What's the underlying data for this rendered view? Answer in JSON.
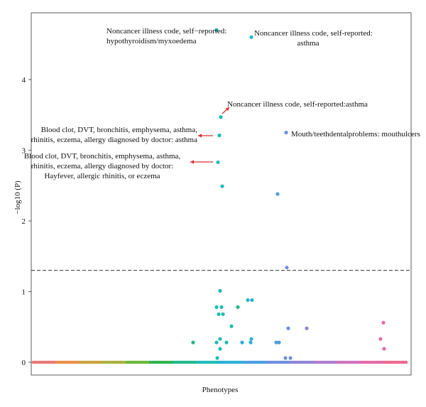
{
  "chart_data": {
    "type": "scatter",
    "title": "",
    "xlabel": "Phenotypes",
    "ylabel": "−log10 (P)",
    "ylim": [
      0,
      5
    ],
    "yticks": [
      0,
      1,
      2,
      3,
      4
    ],
    "threshold": 1.3,
    "grid": false,
    "legend": "none",
    "baseline_colors": [
      "#e87878",
      "#e8904a",
      "#c9a23a",
      "#a8b23a",
      "#6cb83a",
      "#2fb34f",
      "#22b88a",
      "#1fbcb4",
      "#2bb0d6",
      "#4a9ee0",
      "#6d8fe0",
      "#8f84d8",
      "#b07ccc",
      "#cf72bc",
      "#e46aa6",
      "#ee6a8e"
    ],
    "points": [
      {
        "x": 305,
        "y": 4.7,
        "color": "#1fbcb4"
      },
      {
        "x": 354,
        "y": 4.6,
        "color": "#2bb0d6"
      },
      {
        "x": 311,
        "y": 3.47,
        "color": "#1fbcb4"
      },
      {
        "x": 309,
        "y": 3.21,
        "color": "#1fbcb4"
      },
      {
        "x": 403,
        "y": 3.25,
        "color": "#6d8fe0"
      },
      {
        "x": 307,
        "y": 2.83,
        "color": "#1fbcb4"
      },
      {
        "x": 313,
        "y": 2.49,
        "color": "#1fbcb4"
      },
      {
        "x": 391,
        "y": 2.38,
        "color": "#4a9ee0"
      },
      {
        "x": 404,
        "y": 1.34,
        "color": "#6d8fe0"
      },
      {
        "x": 310,
        "y": 1.01,
        "color": "#1fbcb4"
      },
      {
        "x": 305,
        "y": 0.78,
        "color": "#1fbcb4"
      },
      {
        "x": 312,
        "y": 0.78,
        "color": "#1fbcb4"
      },
      {
        "x": 308,
        "y": 0.68,
        "color": "#1fbcb4"
      },
      {
        "x": 314,
        "y": 0.68,
        "color": "#1fbcb4"
      },
      {
        "x": 349,
        "y": 0.88,
        "color": "#2bb0d6"
      },
      {
        "x": 355,
        "y": 0.88,
        "color": "#2bb0d6"
      },
      {
        "x": 335,
        "y": 0.78,
        "color": "#22b88a"
      },
      {
        "x": 326,
        "y": 0.51,
        "color": "#1fbcb4"
      },
      {
        "x": 406,
        "y": 0.48,
        "color": "#6d8fe0"
      },
      {
        "x": 432,
        "y": 0.48,
        "color": "#8f84d8"
      },
      {
        "x": 540,
        "y": 0.56,
        "color": "#e46aa6"
      },
      {
        "x": 310,
        "y": 0.33,
        "color": "#1fbcb4"
      },
      {
        "x": 354,
        "y": 0.33,
        "color": "#2bb0d6"
      },
      {
        "x": 536,
        "y": 0.33,
        "color": "#e46aa6"
      },
      {
        "x": 272,
        "y": 0.28,
        "color": "#22b88a"
      },
      {
        "x": 305,
        "y": 0.28,
        "color": "#1fbcb4"
      },
      {
        "x": 319,
        "y": 0.28,
        "color": "#1fbcb4"
      },
      {
        "x": 341,
        "y": 0.28,
        "color": "#2bb0d6"
      },
      {
        "x": 353,
        "y": 0.28,
        "color": "#2bb0d6"
      },
      {
        "x": 389,
        "y": 0.28,
        "color": "#4a9ee0"
      },
      {
        "x": 393,
        "y": 0.28,
        "color": "#4a9ee0"
      },
      {
        "x": 310,
        "y": 0.19,
        "color": "#1fbcb4"
      },
      {
        "x": 541,
        "y": 0.19,
        "color": "#e46aa6"
      },
      {
        "x": 306,
        "y": 0.06,
        "color": "#1fbcb4"
      },
      {
        "x": 402,
        "y": 0.06,
        "color": "#6d8fe0"
      },
      {
        "x": 409,
        "y": 0.06,
        "color": "#6d8fe0"
      }
    ],
    "annotations": [
      "Noncancer illness code, self−reported:\nhypothyroidism/myxoedema",
      "Noncancer illness code, self-reported:\nasthma",
      "Noncancer illness code, self-reported:asthma",
      "Blood clot, DVT, bronchitis, emphysema, asthma,\nrhinitis, eczema, allergy diagnosed by doctor: asthma",
      "Mouth/teethdentalproblems: mouthulcers",
      "Blood clot, DVT, bronchitis, emphysema, asthma,\nrhinitis, eczema, allergy diagnosed by doctor:\nHayfever, allergic rhinitis, or eczema"
    ]
  }
}
